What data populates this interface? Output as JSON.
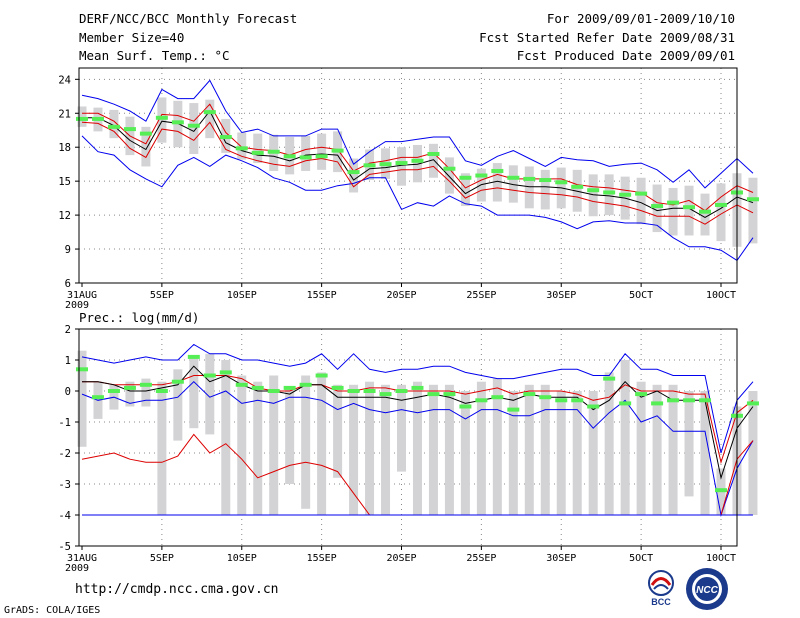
{
  "header": {
    "title": "DERF/NCC/BCC Monthly Forecast",
    "member_size": "Member Size=40",
    "variable": "Mean Surf. Temp.: °C",
    "period": "For 2009/09/01-2009/10/10",
    "started": "Fcst Started Refer Date 2009/08/31",
    "produced": "Fcst Produced Date 2009/09/01"
  },
  "footer": {
    "url": "http://cmdp.ncc.cma.gov.cn",
    "credit": "GrADS: COLA/IGES",
    "logo_left_label": "BCC",
    "logo_right_label": "NCC"
  },
  "colors": {
    "envelope": "#0000ee",
    "quartile": "#dd0000",
    "mean": "#000000",
    "median": "#55ee55",
    "box": "#d3d3d6",
    "grid": "#888888"
  },
  "chart_data": [
    {
      "type": "box-ensemble",
      "title": "Mean Surf. Temp.: °C",
      "xlabel": "",
      "ylabel": "Mean Surf. Temp. (°C)",
      "x_ticks": [
        "31AUG",
        "5SEP",
        "10SEP",
        "15SEP",
        "20SEP",
        "25SEP",
        "30SEP",
        "5OCT",
        "10OCT"
      ],
      "x_year": "2009",
      "ylim": [
        6,
        25
      ],
      "y_ticks": [
        6,
        9,
        12,
        15,
        18,
        21,
        24
      ],
      "series": [
        {
          "name": "max",
          "values": [
            22.6,
            22.3,
            21.8,
            21.2,
            20.3,
            23.1,
            22.3,
            22.3,
            23.9,
            21.2,
            19.3,
            19.6,
            19.0,
            19.0,
            19.0,
            19.6,
            19.6,
            16.5,
            17.6,
            18.5,
            18.5,
            18.7,
            18.9,
            18.9,
            16.8,
            16.4,
            17.2,
            17.7,
            17.0,
            16.3,
            17.1,
            16.9,
            16.8,
            16.3,
            16.5,
            16.6,
            16.0,
            14.9,
            16.0,
            14.4,
            15.7,
            17.0,
            15.7
          ]
        },
        {
          "name": "upper_quartile",
          "values": [
            21.0,
            21.0,
            20.3,
            19.0,
            18.3,
            20.9,
            20.8,
            20.3,
            21.8,
            19.3,
            18.0,
            17.8,
            17.7,
            17.3,
            17.8,
            18.0,
            17.8,
            15.9,
            16.6,
            16.8,
            17.1,
            17.1,
            17.5,
            16.1,
            14.4,
            15.1,
            15.6,
            15.2,
            15.2,
            15.2,
            15.2,
            14.7,
            14.5,
            14.4,
            14.2,
            14.0,
            13.1,
            12.9,
            13.3,
            12.4,
            13.6,
            14.6,
            14.0
          ]
        },
        {
          "name": "mean",
          "values": [
            20.6,
            20.6,
            19.9,
            18.6,
            17.8,
            20.3,
            20.1,
            19.4,
            21.2,
            18.4,
            17.7,
            17.3,
            17.2,
            16.8,
            17.3,
            17.4,
            17.3,
            15.1,
            16.1,
            16.2,
            16.4,
            16.5,
            16.9,
            15.4,
            13.9,
            14.7,
            15.0,
            14.7,
            14.5,
            14.5,
            14.4,
            14.1,
            13.8,
            13.7,
            13.5,
            13.1,
            12.4,
            12.6,
            12.6,
            11.8,
            12.6,
            13.6,
            13.1
          ]
        },
        {
          "name": "lower_quartile",
          "values": [
            20.2,
            20.1,
            19.4,
            17.9,
            17.1,
            19.6,
            19.4,
            18.6,
            20.2,
            17.8,
            17.2,
            16.8,
            16.5,
            16.3,
            16.8,
            17.0,
            16.7,
            14.5,
            15.6,
            15.8,
            16.0,
            16.0,
            16.3,
            15.0,
            13.5,
            14.2,
            14.4,
            14.2,
            14.0,
            13.9,
            13.8,
            13.6,
            13.2,
            13.0,
            12.8,
            12.4,
            11.9,
            11.9,
            11.9,
            11.2,
            12.1,
            12.9,
            12.2
          ]
        },
        {
          "name": "min",
          "values": [
            19.0,
            17.6,
            17.3,
            16.0,
            15.2,
            14.5,
            16.4,
            17.1,
            16.3,
            17.3,
            16.8,
            16.2,
            15.3,
            14.9,
            14.2,
            14.2,
            14.6,
            14.8,
            15.3,
            15.3,
            12.5,
            13.1,
            12.8,
            13.7,
            13.0,
            12.8,
            12.0,
            12.0,
            12.0,
            11.8,
            11.4,
            10.8,
            11.4,
            11.5,
            11.3,
            11.3,
            11.1,
            10.0,
            9.2,
            9.2,
            8.9,
            8.0,
            10.0
          ]
        },
        {
          "name": "median",
          "values": [
            20.5,
            20.5,
            19.8,
            19.6,
            19.2,
            20.6,
            20.2,
            19.9,
            21.1,
            18.9,
            17.9,
            17.5,
            17.6,
            17.2,
            17.1,
            17.2,
            17.7,
            15.8,
            16.4,
            16.5,
            16.6,
            16.8,
            17.4,
            16.1,
            15.3,
            15.5,
            15.9,
            15.3,
            15.2,
            15.1,
            14.9,
            14.5,
            14.2,
            14.0,
            13.8,
            13.9,
            12.8,
            13.1,
            12.7,
            12.3,
            12.9,
            14.0,
            13.4
          ]
        },
        {
          "name": "box_top",
          "values": [
            21.6,
            21.5,
            21.3,
            20.7,
            19.8,
            22.4,
            22.1,
            21.9,
            22.2,
            20.5,
            19.3,
            19.2,
            19.1,
            18.9,
            19.0,
            19.2,
            19.4,
            17.0,
            17.8,
            17.9,
            18.0,
            18.2,
            18.3,
            17.1,
            15.7,
            16.1,
            16.6,
            16.4,
            16.3,
            16.0,
            16.2,
            16.0,
            15.6,
            15.6,
            15.4,
            15.3,
            14.7,
            14.4,
            14.6,
            13.9,
            14.8,
            15.7,
            15.3
          ]
        },
        {
          "name": "box_bottom",
          "values": [
            19.8,
            19.4,
            18.8,
            17.3,
            16.3,
            18.4,
            18.0,
            17.4,
            18.8,
            17.5,
            16.9,
            16.6,
            15.9,
            15.6,
            15.9,
            16.0,
            15.8,
            14.0,
            15.1,
            15.2,
            14.6,
            14.9,
            15.3,
            13.9,
            12.8,
            13.2,
            13.2,
            13.1,
            12.6,
            12.5,
            12.6,
            12.3,
            11.9,
            12.0,
            11.6,
            11.2,
            10.5,
            10.2,
            10.2,
            10.2,
            9.7,
            9.2,
            9.5
          ]
        }
      ]
    },
    {
      "type": "box-ensemble",
      "title": "Prec.: log(mm/d)",
      "xlabel": "",
      "ylabel": "log(mm/d)",
      "x_ticks": [
        "31AUG",
        "5SEP",
        "10SEP",
        "15SEP",
        "20SEP",
        "25SEP",
        "30SEP",
        "5OCT",
        "10OCT"
      ],
      "x_year": "2009",
      "ylim": [
        -5,
        2
      ],
      "y_ticks": [
        -5,
        -4,
        -3,
        -2,
        -1,
        0,
        1,
        2
      ],
      "series": [
        {
          "name": "max",
          "values": [
            1.1,
            1.0,
            0.9,
            1.0,
            1.1,
            1.0,
            1.0,
            1.5,
            1.2,
            1.2,
            1.0,
            1.0,
            0.9,
            0.8,
            0.9,
            1.2,
            0.7,
            1.2,
            0.7,
            0.6,
            0.7,
            0.7,
            0.8,
            0.8,
            0.6,
            0.5,
            0.4,
            0.4,
            0.5,
            0.6,
            0.7,
            0.7,
            0.5,
            0.5,
            1.2,
            0.7,
            0.7,
            0.5,
            0.5,
            0.5,
            -2.0,
            -0.3,
            0.3
          ]
        },
        {
          "name": "upper_quartile",
          "values": [
            0.3,
            0.3,
            0.2,
            0.2,
            0.2,
            0.2,
            0.3,
            0.5,
            0.5,
            0.5,
            0.4,
            0.1,
            0.0,
            0.0,
            0.2,
            0.2,
            0.0,
            0.0,
            0.1,
            0.1,
            0.0,
            0.0,
            0.0,
            0.0,
            -0.1,
            0.0,
            0.1,
            -0.1,
            0.0,
            0.0,
            0.0,
            -0.1,
            -0.3,
            -0.2,
            0.2,
            0.0,
            0.0,
            0.0,
            -0.1,
            -0.1,
            -2.3,
            -0.7,
            -0.3
          ]
        },
        {
          "name": "mean",
          "values": [
            0.3,
            0.3,
            0.2,
            0.0,
            0.0,
            0.1,
            0.2,
            0.8,
            0.3,
            0.5,
            0.2,
            0.0,
            0.0,
            -0.1,
            0.2,
            0.2,
            -0.2,
            -0.2,
            -0.2,
            -0.2,
            -0.3,
            -0.2,
            -0.1,
            -0.2,
            -0.4,
            -0.3,
            -0.2,
            -0.3,
            -0.1,
            -0.2,
            -0.2,
            -0.2,
            -0.6,
            -0.3,
            0.3,
            -0.2,
            0.0,
            -0.3,
            -0.3,
            -0.3,
            -2.8,
            -1.2,
            -0.5
          ]
        },
        {
          "name": "lower_quartile",
          "values": [
            -2.2,
            -2.1,
            -2.0,
            -2.2,
            -2.3,
            -2.3,
            -2.1,
            -1.4,
            -2.0,
            -1.7,
            -2.2,
            -2.8,
            -2.6,
            -2.4,
            -2.3,
            -2.4,
            -2.6,
            -3.3,
            -4.0,
            -4.0,
            -4.0,
            -4.0,
            -4.0,
            -4.0,
            -4.0,
            -4.0,
            -4.0,
            -4.0,
            -4.0,
            -4.0,
            -4.0,
            -4.0,
            -4.0,
            -4.0,
            -4.0,
            -4.0,
            -4.0,
            -4.0,
            -4.0,
            -4.0,
            -4.0,
            -2.2,
            -1.6
          ]
        },
        {
          "name": "min",
          "values": [
            -0.1,
            -0.3,
            -0.2,
            -0.4,
            -0.3,
            -0.3,
            -0.2,
            0.3,
            -0.2,
            0.0,
            -0.4,
            -0.3,
            -0.4,
            -0.2,
            -0.2,
            -0.3,
            -0.6,
            -0.4,
            -0.6,
            -0.7,
            -0.6,
            -0.7,
            -0.6,
            -0.6,
            -0.9,
            -0.6,
            -0.6,
            -0.8,
            -0.8,
            -0.6,
            -0.6,
            -0.6,
            -1.2,
            -0.7,
            -0.3,
            -1.0,
            -0.8,
            -1.3,
            -1.3,
            -1.3,
            -4.0,
            -2.5,
            -1.6
          ]
        },
        {
          "name": "median",
          "values": [
            0.7,
            -0.2,
            0.0,
            0.1,
            0.2,
            0.0,
            0.3,
            1.1,
            0.5,
            0.6,
            0.2,
            0.1,
            0.0,
            0.1,
            0.2,
            0.5,
            0.1,
            0.0,
            0.0,
            -0.1,
            0.0,
            0.1,
            -0.1,
            -0.1,
            -0.5,
            -0.3,
            -0.2,
            -0.6,
            -0.1,
            -0.2,
            -0.3,
            -0.3,
            -0.5,
            0.4,
            -0.4,
            -0.1,
            -0.4,
            -0.3,
            -0.3,
            -0.3,
            -3.2,
            -0.8,
            -0.4
          ]
        },
        {
          "name": "box_top",
          "values": [
            1.3,
            0.3,
            0.2,
            0.3,
            0.4,
            0.3,
            0.7,
            1.1,
            1.2,
            1.0,
            0.5,
            0.3,
            0.5,
            0.1,
            0.5,
            0.6,
            0.2,
            0.2,
            0.3,
            0.2,
            0.2,
            0.3,
            0.2,
            0.2,
            0.0,
            0.3,
            0.4,
            0.0,
            0.2,
            0.2,
            0.0,
            0.0,
            0.0,
            0.6,
            1.0,
            0.3,
            0.2,
            0.2,
            0.0,
            0.0,
            -2.5,
            -0.5,
            0.0
          ]
        },
        {
          "name": "box_bottom",
          "values": [
            -1.8,
            -0.9,
            -0.6,
            -0.5,
            -0.5,
            -4.0,
            -1.6,
            -1.2,
            -1.4,
            -4.0,
            -4.0,
            -4.0,
            -4.0,
            -3.0,
            -3.8,
            -4.0,
            -2.8,
            -4.0,
            -4.0,
            -4.0,
            -2.6,
            -4.0,
            -4.0,
            -4.0,
            -4.0,
            -4.0,
            -4.0,
            -4.0,
            -4.0,
            -4.0,
            -4.0,
            -4.0,
            -4.0,
            -4.0,
            -4.0,
            -4.0,
            -4.0,
            -4.0,
            -3.4,
            -4.0,
            -4.0,
            -4.0,
            -4.0
          ]
        }
      ]
    }
  ]
}
